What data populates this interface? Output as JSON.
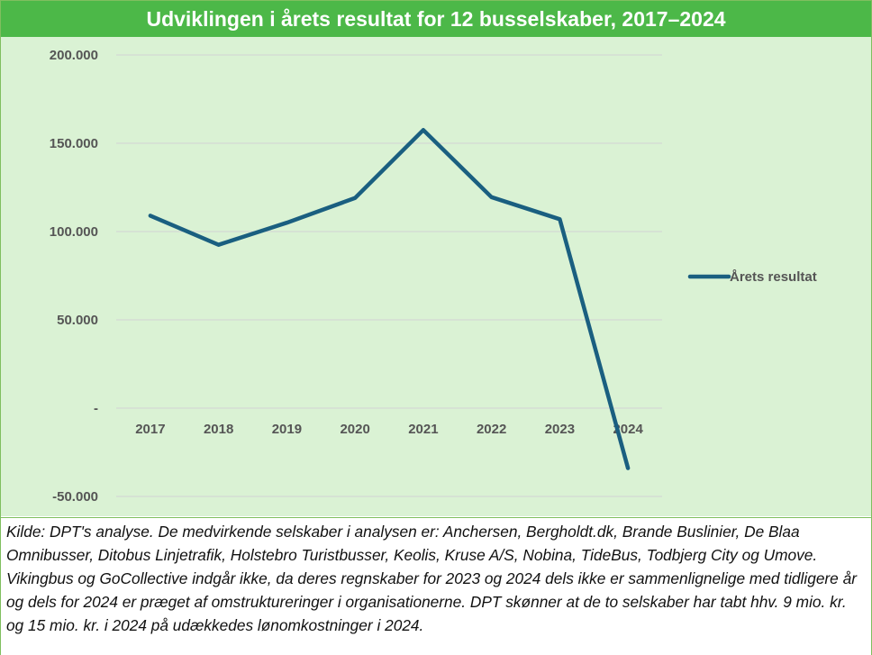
{
  "chart_data": {
    "type": "line",
    "title": "Udviklingen i årets resultat for 12 busselskaber, 2017–2024",
    "categories": [
      "2017",
      "2018",
      "2019",
      "2020",
      "2021",
      "2022",
      "2023",
      "2024"
    ],
    "series": [
      {
        "name": "Årets resultat",
        "values": [
          109000,
          92500,
          105000,
          119000,
          157500,
          119500,
          107000,
          -34000
        ],
        "color": "#1a5f80"
      }
    ],
    "y_ticks": [
      {
        "value": 200000,
        "label": "200.000"
      },
      {
        "value": 150000,
        "label": "150.000"
      },
      {
        "value": 100000,
        "label": "100.000"
      },
      {
        "value": 50000,
        "label": "50.000"
      },
      {
        "value": 0,
        "label": "-"
      },
      {
        "value": -50000,
        "label": "-50.000"
      }
    ],
    "ylim": [
      -50000,
      200000
    ],
    "grid": true,
    "legend": "right",
    "colors": {
      "title_bg": "#4cb848",
      "plot_bg": "#daf2d4",
      "gridline": "#d3d3d3",
      "line": "#1a5f80"
    }
  },
  "note": "Kilde: DPT's analyse. De medvirkende selskaber i analysen er: Anchersen, Bergholdt.dk, Brande Buslinier, De Blaa Omnibusser, Ditobus Linjetrafik, Holstebro Turistbusser, Keolis, Kruse A/S, Nobina, TideBus, Todbjerg City og Umove. Vikingbus og GoCollective indgår ikke, da deres regnskaber for 2023 og 2024 dels ikke er sammenlignelige med tidligere år og dels for 2024 er præget af omstruktureringer i organisationerne. DPT skønner at de to selskaber har tabt hhv. 9 mio. kr. og 15 mio. kr. i 2024 på udækkedes lønomkostninger i 2024."
}
